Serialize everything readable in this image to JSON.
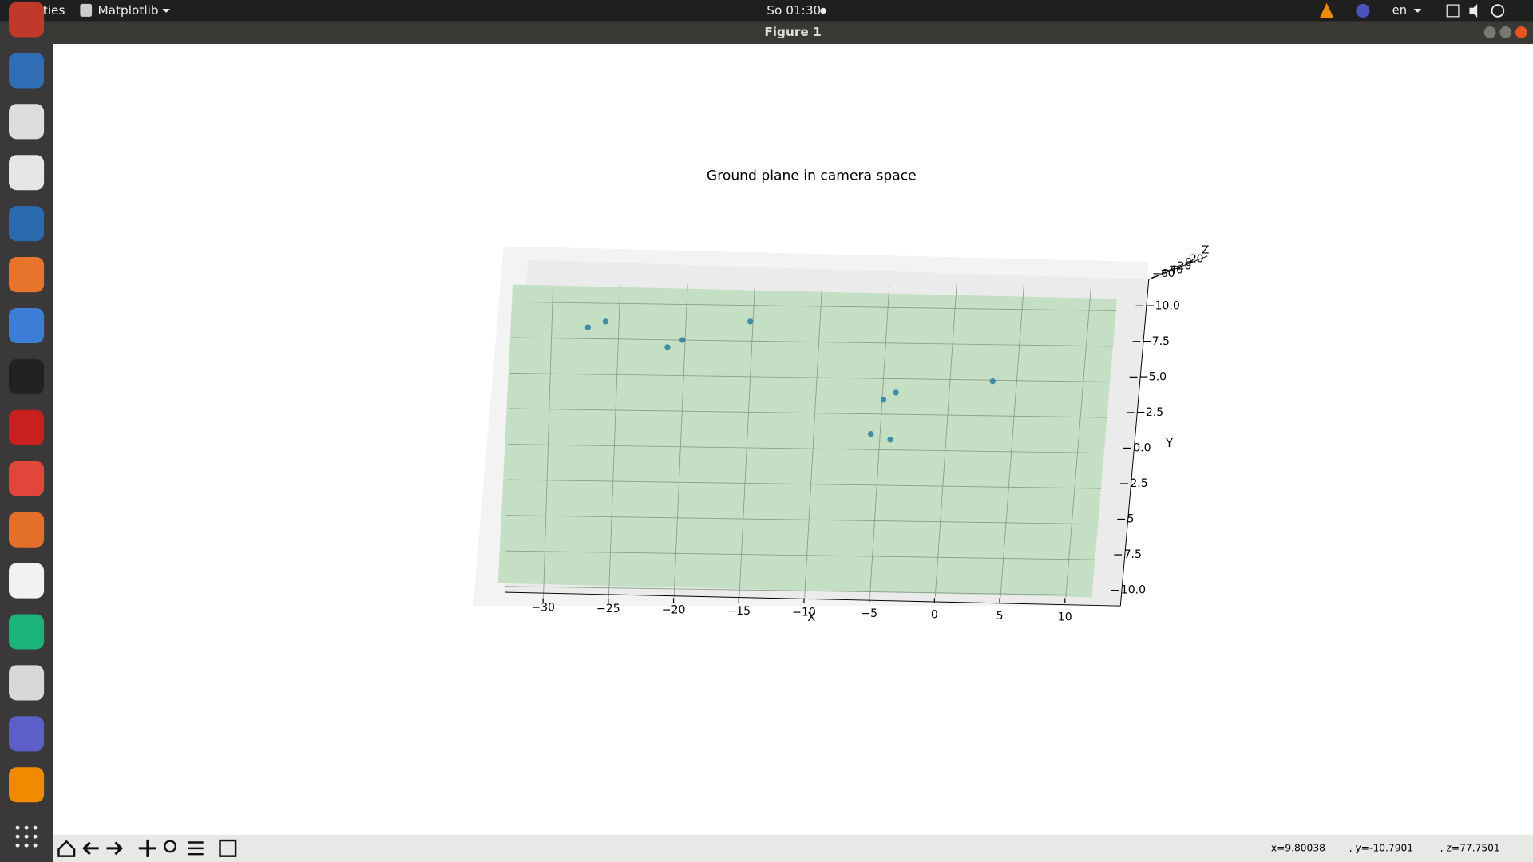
{
  "topbar": {
    "activities": "Activities",
    "app": "Matplotlib",
    "clock": "So 01:30",
    "language": "en"
  },
  "window": {
    "title": "Figure 1"
  },
  "chart_data": {
    "type": "scatter",
    "title": "Ground plane in camera space",
    "xlabel": "X",
    "ylabel": "Y",
    "zlabel": "Z",
    "series": [
      {
        "color": "#2a7f9e",
        "x": [
          -27.3,
          -26.0,
          -21.3,
          -20.2,
          -15.2,
          -4.9,
          -4.0,
          -5.7,
          -4.2,
          3.2
        ],
        "values": [
          -8.5,
          -8.9,
          -7.1,
          -7.6,
          -8.9,
          -3.4,
          -3.9,
          -1.0,
          -0.6,
          -4.7
        ]
      }
    ],
    "plane_color": "#c4dfc4",
    "xticks": [
      {
        "value": -30,
        "label": "−30"
      },
      {
        "value": -25,
        "label": "−25"
      },
      {
        "value": -20,
        "label": "−20"
      },
      {
        "value": -15,
        "label": "−15"
      },
      {
        "value": -10,
        "label": "−10"
      },
      {
        "value": -5,
        "label": "−5"
      },
      0,
      5,
      10
    ],
    "yticks": [
      {
        "value": -10,
        "label": "−10.0"
      },
      {
        "value": -7.5,
        "label": "−7.5"
      },
      {
        "value": -5,
        "label": "−5.0"
      },
      {
        "value": -2.5,
        "label": "−2.5"
      },
      {
        "value": 0,
        "label": "0.0"
      },
      2.5,
      5,
      7.5,
      {
        "value": 10,
        "label": "10.0"
      }
    ],
    "yticks_fix": null,
    "zticks": [
      {
        "value": -60,
        "label": "−60"
      },
      {
        "value": -40,
        "label": "−40"
      },
      {
        "value": -20,
        "label": "−20"
      },
      0,
      20
    ],
    "grid": true
  },
  "statusbar": {
    "x": "x=9.80038",
    "y": ", y=-10.7901",
    "z": ", z=77.7501"
  }
}
